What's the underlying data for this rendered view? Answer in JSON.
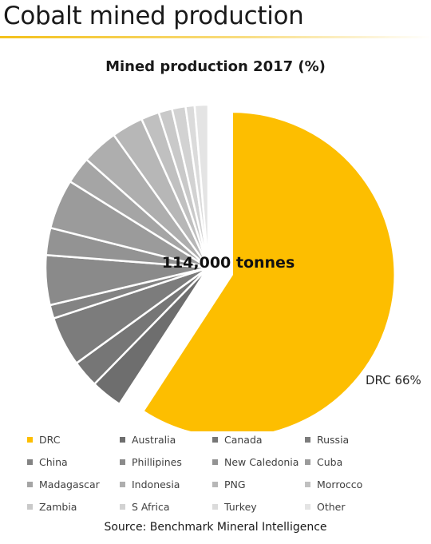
{
  "slide_title": "Cobalt mined production",
  "source": "Source: Benchmark Mineral Intelligence",
  "chart_data": {
    "type": "pie",
    "title": "Mined production 2017 (%)",
    "center_label": "114,000 tonnes",
    "slice_label": "DRC 66%",
    "exploded_slice": "DRC",
    "categories": [
      "DRC",
      "Australia",
      "Canada",
      "Russia",
      "China",
      "Phillipines",
      "New Caledonia",
      "Cuba",
      "Madagascar",
      "Indonesia",
      "PNG",
      "Morrocco",
      "Zambia",
      "S Africa",
      "Turkey",
      "Other"
    ],
    "values": [
      66,
      3.5,
      3,
      5.5,
      1.5,
      5.5,
      3,
      5.5,
      3,
      4,
      3.5,
      2,
      1.5,
      1.5,
      1,
      1.5
    ],
    "colors": [
      "#fdbe00",
      "#6e6e6e",
      "#767676",
      "#7c7c7c",
      "#838383",
      "#8a8a8a",
      "#939393",
      "#9b9b9b",
      "#a5a5a5",
      "#aeaeae",
      "#b7b7b7",
      "#c0c0c0",
      "#c9c9c9",
      "#d2d2d2",
      "#dbdbdb",
      "#e4e4e4"
    ],
    "legend_position": "bottom"
  }
}
